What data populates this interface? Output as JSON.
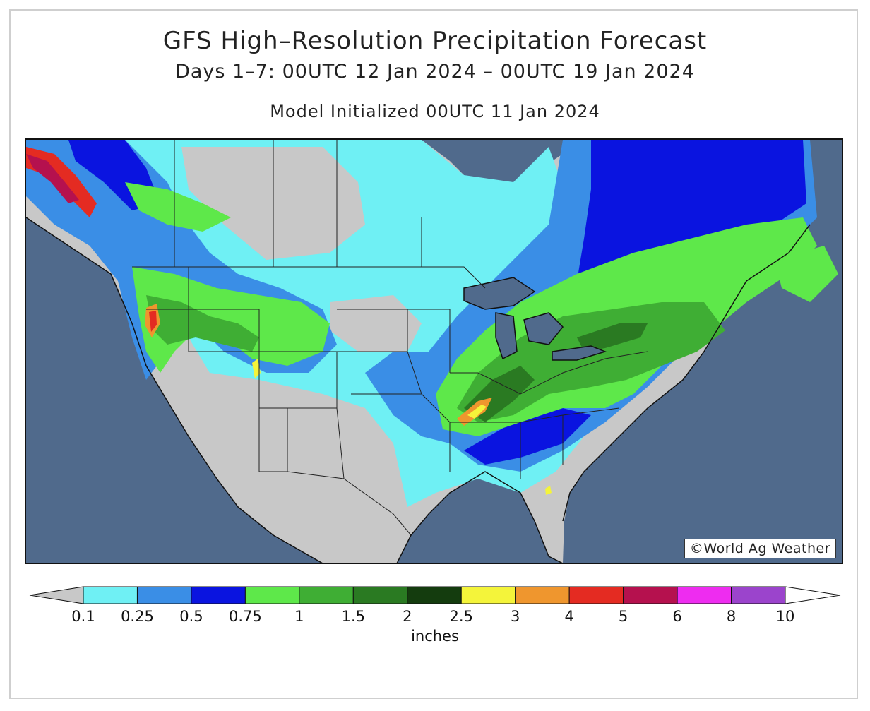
{
  "title": "GFS High–Resolution Precipitation Forecast",
  "subtitle": "Days 1–7: 00UTC 12 Jan 2024 – 00UTC 19 Jan 2024",
  "init": "Model Initialized 00UTC 11 Jan 2024",
  "credit": "©World Ag Weather",
  "legend": {
    "units": "inches",
    "ticks": [
      "0.1",
      "0.25",
      "0.5",
      "0.75",
      "1",
      "1.5",
      "2",
      "2.5",
      "3",
      "4",
      "5",
      "6",
      "8",
      "10"
    ],
    "colors": [
      "#c8c8c8",
      "#6ff0f4",
      "#3a8ee6",
      "#0a14e0",
      "#5ee84a",
      "#3fae34",
      "#2a7a22",
      "#143c0e",
      "#f4f43a",
      "#ef962e",
      "#e42b22",
      "#b5114e",
      "#ee2cf0",
      "#9b44cc",
      "#ffffff"
    ]
  },
  "colors": {
    "ocean": "#506a8c",
    "land_dry": "#c8c8c8"
  }
}
